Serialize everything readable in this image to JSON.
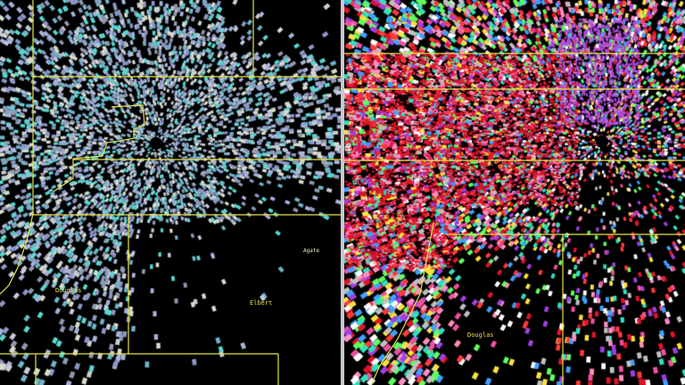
{
  "left_panel": {
    "product": "reflectivity",
    "palette": [
      "#8c96c8",
      "#a8b4dc",
      "#c8ccd8",
      "#d8dccc",
      "#6fb4c8",
      "#58d8d0",
      "#9098b0"
    ],
    "labels": {
      "douglas": "Douglas",
      "elbert_county": "Elbert",
      "agate": "Agate"
    }
  },
  "right_panel": {
    "product": "velocity",
    "palette": [
      "#e0142a",
      "#ff3a3a",
      "#ff8fc0",
      "#f050a0",
      "#30e0c0",
      "#60ff60",
      "#ffe040",
      "#c0c0c0",
      "#a040e0",
      "#40a0ff",
      "#ffffff"
    ],
    "labels": {
      "douglas": "Douglas"
    }
  },
  "boundary_color": "#e6e24a",
  "radar_site_color": "#000000"
}
